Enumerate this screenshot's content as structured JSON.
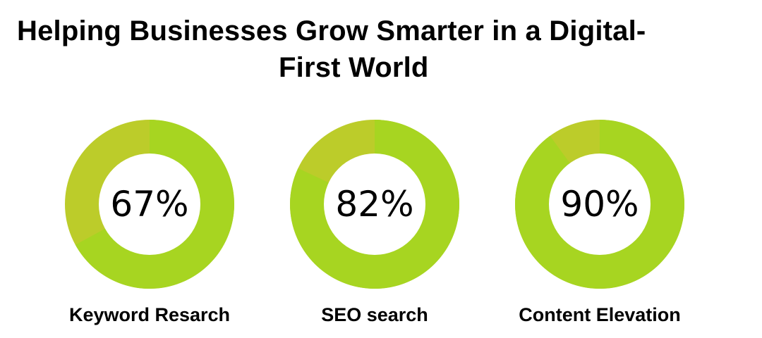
{
  "title": {
    "line1": "Helping Businesses Grow Smarter in a Digital-",
    "line2": "First World"
  },
  "colors": {
    "primary": "#a7d521",
    "secondary": "#bccc2a",
    "center": "#ffffff"
  },
  "chart_data": {
    "type": "pie",
    "subtype": "donut",
    "items": [
      {
        "label": "Keyword Resarch",
        "value": 67,
        "display": "67%"
      },
      {
        "label": "SEO search",
        "value": 82,
        "display": "82%"
      },
      {
        "label": "Content Elevation",
        "value": 90,
        "display": "90%"
      }
    ]
  }
}
